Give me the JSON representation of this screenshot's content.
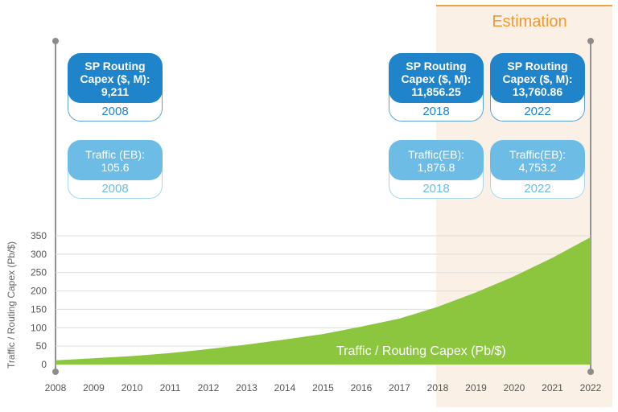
{
  "estimation": {
    "label": "Estimation"
  },
  "cards": [
    {
      "kind": "capex",
      "line1": "SP Routing",
      "line2": "Capex ($, M):",
      "value": "9,211",
      "year": "2008"
    },
    {
      "kind": "capex",
      "line1": "SP Routing",
      "line2": "Capex ($, M):",
      "value": "11,856.25",
      "year": "2018"
    },
    {
      "kind": "capex",
      "line1": "SP Routing",
      "line2": "Capex ($, M):",
      "value": "13,760.86",
      "year": "2022"
    },
    {
      "kind": "traffic",
      "line1": "Traffic (EB):",
      "value": "105.6",
      "year": "2008"
    },
    {
      "kind": "traffic",
      "line1": "Traffic(EB):",
      "value": "1,876.8",
      "year": "2018"
    },
    {
      "kind": "traffic",
      "line1": "Traffic(EB):",
      "value": "4,753.2",
      "year": "2022"
    }
  ],
  "colors": {
    "area": "#8cc63f",
    "capex": "#1f84c9",
    "traffic": "#6dbce6",
    "estimation": "#f0992e"
  },
  "chart_data": {
    "type": "area",
    "ylabel": "Traffic / Routing Capex (Pb/$)",
    "series": [
      {
        "name": "Traffic / Routing Capex (Pb/$)",
        "values": [
          11.5,
          17,
          23,
          31,
          42,
          54,
          68,
          83,
          103,
          125,
          157,
          196,
          240,
          290,
          346
        ]
      }
    ],
    "x": [
      "2008",
      "2009",
      "2010",
      "2011",
      "2012",
      "2013",
      "2014",
      "2015",
      "2016",
      "2017",
      "2018",
      "2019",
      "2020",
      "2021",
      "2022"
    ],
    "yticks": [
      "0",
      "50",
      "100",
      "150",
      "200",
      "250",
      "300",
      "350"
    ],
    "ylim": [
      0,
      350
    ],
    "grid": true,
    "estimation_range": [
      "2018",
      "2022"
    ]
  }
}
